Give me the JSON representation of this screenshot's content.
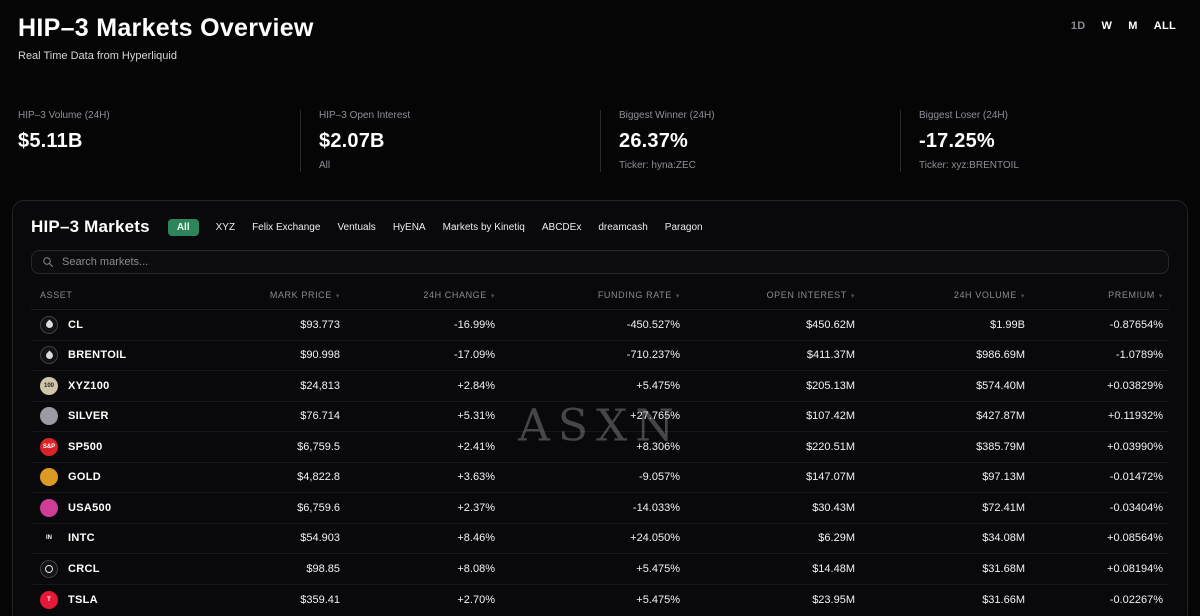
{
  "colors": {
    "up": "#4cc38a",
    "down": "#f04b4f",
    "accent": "#2f855a",
    "background": "#050505"
  },
  "header": {
    "title": "HIP–3 Markets Overview",
    "subtitle": "Real Time Data from Hyperliquid",
    "ranges": [
      {
        "label": "1D",
        "active": true
      },
      {
        "label": "W",
        "active": false
      },
      {
        "label": "M",
        "active": false
      },
      {
        "label": "ALL",
        "active": false
      }
    ]
  },
  "stats": [
    {
      "label": "HIP–3 Volume (24H)",
      "value": "$5.11B",
      "sub": ""
    },
    {
      "label": "HIP–3 Open Interest",
      "value": "$2.07B",
      "sub": "All"
    },
    {
      "label": "Biggest Winner (24H)",
      "value": "26.37%",
      "sub": "Ticker: hyna:ZEC"
    },
    {
      "label": "Biggest Loser (24H)",
      "value": "-17.25%",
      "sub": "Ticker: xyz:BRENTOIL"
    }
  ],
  "markets": {
    "title": "HIP–3 Markets",
    "tabs": [
      "All",
      "XYZ",
      "Felix Exchange",
      "Ventuals",
      "HyENA",
      "Markets by Kinetiq",
      "ABCDEx",
      "dreamcash",
      "Paragon"
    ],
    "active_tab": "All",
    "search_placeholder": "Search markets...",
    "watermark": "ASXN",
    "columns": [
      "ASSET",
      "MARK PRICE",
      "24H CHANGE",
      "FUNDING RATE",
      "OPEN INTEREST",
      "24H VOLUME",
      "PREMIUM"
    ],
    "rows": [
      {
        "asset": "CL",
        "icon": {
          "shape": "drop",
          "text": "",
          "bg": "#131316",
          "fg": "#ffffff",
          "border": "#3f3f46"
        },
        "mark": "$93.773",
        "change": "-16.99%",
        "funding": "-450.527%",
        "oi": "$450.62M",
        "vol": "$1.99B",
        "premium": "-0.87654%"
      },
      {
        "asset": "BRENTOIL",
        "icon": {
          "shape": "drop",
          "text": "",
          "bg": "#131316",
          "fg": "#ffffff",
          "border": "#3f3f46"
        },
        "mark": "$90.998",
        "change": "-17.09%",
        "funding": "-710.237%",
        "oi": "$411.37M",
        "vol": "$986.69M",
        "premium": "-1.0789%"
      },
      {
        "asset": "XYZ100",
        "icon": {
          "shape": "text",
          "text": "100",
          "bg": "#cfc5a9",
          "fg": "#26251f",
          "border": ""
        },
        "mark": "$24,813",
        "change": "+2.84%",
        "funding": "+5.475%",
        "oi": "$205.13M",
        "vol": "$574.40M",
        "premium": "+0.03829%"
      },
      {
        "asset": "SILVER",
        "icon": {
          "shape": "text",
          "text": "",
          "bg": "#9a9aa1",
          "fg": "#ffffff",
          "border": ""
        },
        "mark": "$76.714",
        "change": "+5.31%",
        "funding": "+27.765%",
        "oi": "$107.42M",
        "vol": "$427.87M",
        "premium": "+0.11932%"
      },
      {
        "asset": "SP500",
        "icon": {
          "shape": "text",
          "text": "S&P",
          "bg": "#d8232a",
          "fg": "#ffffff",
          "border": ""
        },
        "mark": "$6,759.5",
        "change": "+2.41%",
        "funding": "+8.306%",
        "oi": "$220.51M",
        "vol": "$385.79M",
        "premium": "+0.03990%"
      },
      {
        "asset": "GOLD",
        "icon": {
          "shape": "text",
          "text": "",
          "bg": "#d99b26",
          "fg": "#7a5200",
          "border": ""
        },
        "mark": "$4,822.8",
        "change": "+3.63%",
        "funding": "-9.057%",
        "oi": "$147.07M",
        "vol": "$97.13M",
        "premium": "-0.01472%"
      },
      {
        "asset": "USA500",
        "icon": {
          "shape": "text",
          "text": "",
          "bg": "#cf3d96",
          "fg": "#ffffff",
          "border": ""
        },
        "mark": "$6,759.6",
        "change": "+2.37%",
        "funding": "-14.033%",
        "oi": "$30.43M",
        "vol": "$72.41M",
        "premium": "-0.03404%"
      },
      {
        "asset": "INTC",
        "icon": {
          "shape": "text",
          "text": "IN",
          "bg": "transparent",
          "fg": "#ffffff",
          "border": ""
        },
        "mark": "$54.903",
        "change": "+8.46%",
        "funding": "+24.050%",
        "oi": "$6.29M",
        "vol": "$34.08M",
        "premium": "+0.08564%"
      },
      {
        "asset": "CRCL",
        "icon": {
          "shape": "ring",
          "text": "",
          "bg": "#131316",
          "fg": "#ffffff",
          "border": "#3f3f46"
        },
        "mark": "$98.85",
        "change": "+8.08%",
        "funding": "+5.475%",
        "oi": "$14.48M",
        "vol": "$31.68M",
        "premium": "+0.08194%"
      },
      {
        "asset": "TSLA",
        "icon": {
          "shape": "text",
          "text": "T",
          "bg": "#e31937",
          "fg": "#ffffff",
          "border": ""
        },
        "mark": "$359.41",
        "change": "+2.70%",
        "funding": "+5.475%",
        "oi": "$23.95M",
        "vol": "$31.66M",
        "premium": "-0.02267%"
      }
    ]
  }
}
